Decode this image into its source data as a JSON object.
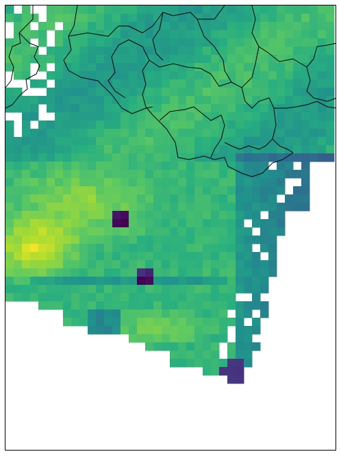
{
  "map": {
    "colormap": [
      "#440154",
      "#472f7d",
      "#3b528b",
      "#2c728e",
      "#21918c",
      "#28ae80",
      "#5ec962",
      "#addc30",
      "#fde725"
    ],
    "background": "#ffffff",
    "border_color": "#000000"
  }
}
